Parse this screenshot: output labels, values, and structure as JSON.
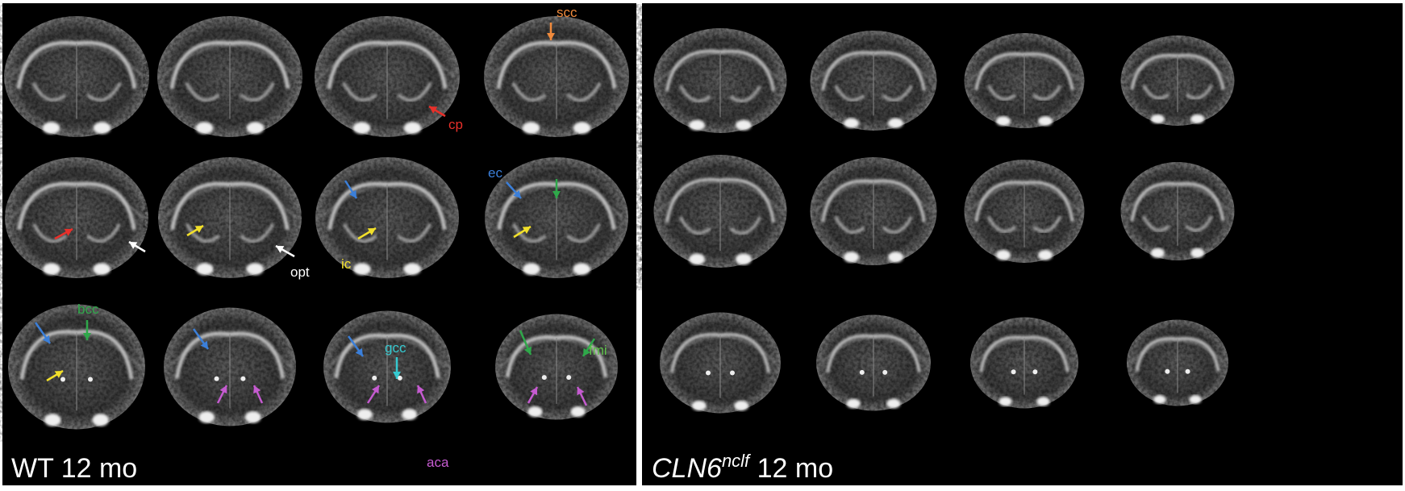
{
  "panels": [
    {
      "id": "wt",
      "title": "WT 12 mo"
    },
    {
      "id": "cln6",
      "title_main": "CLN6",
      "title_sup": "nclf",
      "title_rest": " 12 mo"
    }
  ],
  "annotations": [
    {
      "key": "scc",
      "label": "scc",
      "color": "#f08a3c"
    },
    {
      "key": "cp",
      "label": "cp",
      "color": "#e8302a"
    },
    {
      "key": "opt",
      "label": "opt",
      "color": "#ffffff"
    },
    {
      "key": "ic",
      "label": "ic",
      "color": "#f2e02a"
    },
    {
      "key": "ec",
      "label": "ec",
      "color": "#3b7fd9"
    },
    {
      "key": "bcc",
      "label": "bcc",
      "color": "#2fa84a"
    },
    {
      "key": "gcc",
      "label": "gcc",
      "color": "#35c9d0"
    },
    {
      "key": "fmi",
      "label": "fmi",
      "color": "#5ec24a"
    },
    {
      "key": "aca",
      "label": "aca",
      "color": "#c55bd0"
    }
  ],
  "colors": {
    "background": "#000000",
    "divider": "#ffffff",
    "blue": "#3b7fd9",
    "yellow": "#f2e02a",
    "red": "#e8302a",
    "white": "#ffffff",
    "green": "#2fa84a",
    "magenta": "#c55bd0",
    "cyan": "#35c9d0",
    "orange": "#f08a3c"
  }
}
